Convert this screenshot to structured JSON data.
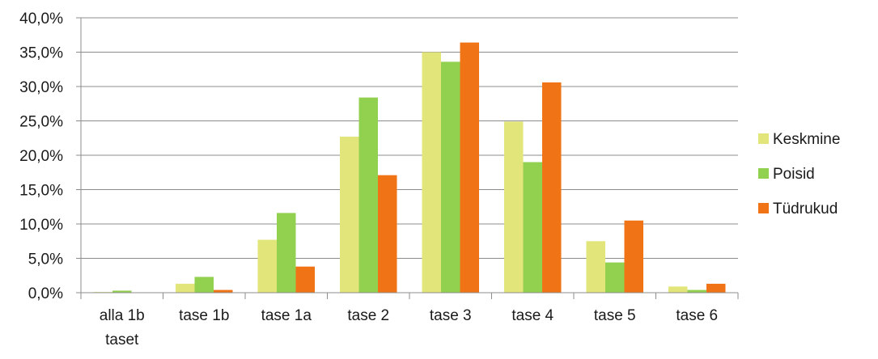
{
  "chart_data": {
    "type": "bar",
    "categories": [
      "alla 1b taset",
      "tase 1b",
      "tase 1a",
      "tase 2",
      "tase 3",
      "tase 4",
      "tase 5",
      "tase 6"
    ],
    "series": [
      {
        "name": "Keskmine",
        "color": "#e2e57a",
        "values": [
          0.1,
          1.3,
          7.7,
          22.7,
          35.0,
          24.9,
          7.5,
          0.9
        ]
      },
      {
        "name": "Poisid",
        "color": "#92d050",
        "values": [
          0.3,
          2.3,
          11.6,
          28.4,
          33.6,
          19.0,
          4.4,
          0.4
        ]
      },
      {
        "name": "Tüdrukud",
        "color": "#f07316",
        "values": [
          0.0,
          0.4,
          3.8,
          17.1,
          36.4,
          30.6,
          10.5,
          1.3
        ]
      }
    ],
    "y_ticks": [
      "0,0%",
      "5,0%",
      "10,0%",
      "15,0%",
      "20,0%",
      "25,0%",
      "30,0%",
      "35,0%",
      "40,0%"
    ],
    "ylim": [
      0,
      40
    ],
    "grid": true,
    "legend_position": "right",
    "title": "",
    "xlabel": "",
    "ylabel": ""
  }
}
